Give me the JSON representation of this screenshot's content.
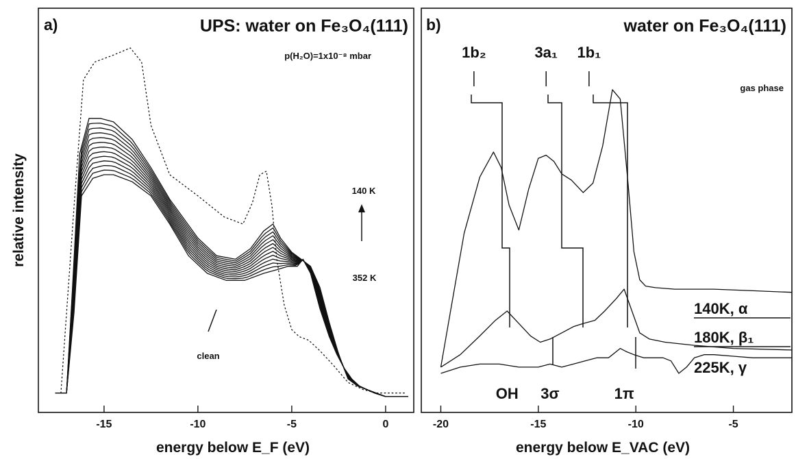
{
  "chart_data": [
    {
      "panel": "a)",
      "type": "line",
      "title": "UPS: water on Fe₃O₄(111)",
      "pressure_label": "p(H₂O)=1x10⁻⁸ mbar",
      "xlabel": "energy below E_F (eV)",
      "ylabel": "relative intensity",
      "xlim": [
        -18.5,
        1.5
      ],
      "xticks": [
        -15,
        -10,
        -5,
        0
      ],
      "xtick_labels": [
        "-15",
        "-10",
        "-5",
        "0"
      ],
      "legend": {
        "top": "140 K",
        "bottom": "352 K",
        "direction": "arrow up"
      },
      "annotations": [
        "clean"
      ],
      "series": [
        {
          "style": "dotted",
          "x": [
            -17.3,
            -16.6,
            -16.1,
            -15.5,
            -14.5,
            -13.6,
            -13.0,
            -12.5,
            -11.5,
            -10.0,
            -8.6,
            -7.6,
            -7.1,
            -6.7,
            -6.35,
            -6.05,
            -5.8,
            -5.4,
            -5.0,
            -4.6,
            -4.1,
            -3.5,
            -2.8,
            -2.0,
            -1.2,
            -0.5,
            0.2,
            1.0
          ],
          "y": [
            0.02,
            0.55,
            0.91,
            0.96,
            0.98,
            1.0,
            0.96,
            0.78,
            0.64,
            0.58,
            0.52,
            0.5,
            0.56,
            0.64,
            0.65,
            0.55,
            0.4,
            0.27,
            0.2,
            0.18,
            0.17,
            0.14,
            0.1,
            0.05,
            0.03,
            0.02,
            0.02,
            0.02
          ]
        },
        {
          "style": "solid",
          "x": [
            -17.6,
            -17.0,
            -16.7,
            -16.3,
            -15.8,
            -15.2,
            -14.5,
            -13.5,
            -12.5,
            -11.5,
            -10.0,
            -9.0,
            -8.0,
            -7.2,
            -6.5,
            -6.0,
            -5.6,
            -5.0,
            -4.5,
            -4.0,
            -3.5,
            -3.0,
            -2.5,
            -2.0,
            -1.5,
            -1.0,
            -0.5,
            0.0,
            1.2
          ],
          "y": [
            0.02,
            0.02,
            0.3,
            0.7,
            0.8,
            0.8,
            0.79,
            0.74,
            0.66,
            0.57,
            0.46,
            0.41,
            0.4,
            0.43,
            0.48,
            0.5,
            0.46,
            0.42,
            0.4,
            0.38,
            0.32,
            0.22,
            0.13,
            0.06,
            0.04,
            0.03,
            0.02,
            0.01,
            0.01
          ]
        },
        {
          "style": "thick",
          "x": [
            -17.6,
            -17.0,
            -16.6,
            -16.2,
            -15.6,
            -15.0,
            -14.5,
            -13.5,
            -12.5,
            -11.5,
            -10.5,
            -9.5,
            -8.5,
            -7.5,
            -6.5,
            -5.8,
            -5.2,
            -4.7,
            -4.4,
            -4.0,
            -3.5,
            -3.0,
            -2.6,
            -2.2,
            -1.8,
            -1.4,
            -1.0,
            -0.6,
            0.0,
            1.2
          ],
          "y": [
            0.02,
            0.02,
            0.25,
            0.58,
            0.63,
            0.64,
            0.64,
            0.62,
            0.58,
            0.5,
            0.41,
            0.36,
            0.34,
            0.34,
            0.36,
            0.37,
            0.38,
            0.38,
            0.4,
            0.36,
            0.26,
            0.18,
            0.13,
            0.09,
            0.06,
            0.04,
            0.03,
            0.02,
            0.01,
            0.01
          ]
        }
      ]
    },
    {
      "panel": "b)",
      "type": "line",
      "title": "water on Fe₃O₄(111)",
      "xlabel": "energy below E_VAC (eV)",
      "xlim": [
        -21,
        -2
      ],
      "xticks": [
        -20,
        -15,
        -10,
        -5
      ],
      "xtick_labels": [
        "-20",
        "-15",
        "-10",
        "-5"
      ],
      "gas_phase_label": "gas phase",
      "orbitals_gas": [
        {
          "label": "1b₂",
          "x": -18.3
        },
        {
          "label": "3a₁",
          "x": -14.6
        },
        {
          "label": "1b₁",
          "x": -12.4
        }
      ],
      "orbitals_adsorbate": [
        {
          "label": "OH",
          "x": -16.6
        },
        {
          "label": "3σ",
          "x": -14.4
        },
        {
          "label": "1π",
          "x": -10.6
        }
      ],
      "series": [
        {
          "name": "140K, α",
          "x": [
            -20.0,
            -19.5,
            -18.8,
            -18.0,
            -17.3,
            -16.9,
            -16.5,
            -16.0,
            -15.5,
            -15.0,
            -14.6,
            -14.2,
            -13.8,
            -13.3,
            -12.7,
            -12.2,
            -11.7,
            -11.2,
            -10.8,
            -10.4,
            -10.1,
            -9.8,
            -9.5,
            -9.0,
            -8.0,
            -6.0,
            -4.0,
            -2.0
          ],
          "y": [
            0.02,
            0.2,
            0.45,
            0.63,
            0.71,
            0.66,
            0.54,
            0.46,
            0.59,
            0.69,
            0.7,
            0.68,
            0.64,
            0.62,
            0.58,
            0.61,
            0.73,
            0.91,
            0.88,
            0.61,
            0.39,
            0.3,
            0.28,
            0.275,
            0.27,
            0.27,
            0.265,
            0.26
          ]
        },
        {
          "name": "180K, β₁",
          "x": [
            -20.0,
            -19.0,
            -18.0,
            -17.2,
            -16.6,
            -16.0,
            -15.4,
            -14.9,
            -14.4,
            -13.8,
            -13.2,
            -12.7,
            -12.1,
            -11.6,
            -11.0,
            -10.6,
            -10.2,
            -9.8,
            -9.3,
            -8.5,
            -7.0,
            -5.0,
            -2.0
          ],
          "y": [
            0.02,
            0.06,
            0.12,
            0.17,
            0.2,
            0.16,
            0.12,
            0.1,
            0.11,
            0.13,
            0.15,
            0.16,
            0.17,
            0.2,
            0.24,
            0.27,
            0.2,
            0.13,
            0.11,
            0.1,
            0.09,
            0.08,
            0.075
          ]
        },
        {
          "name": "225K, γ",
          "x": [
            -20.0,
            -19.0,
            -18.0,
            -17.0,
            -16.0,
            -15.0,
            -14.4,
            -13.8,
            -13.2,
            -12.6,
            -12.0,
            -11.4,
            -10.8,
            -10.5,
            -10.1,
            -9.6,
            -9.1,
            -8.6,
            -8.2,
            -7.8,
            -7.4,
            -7.0,
            -6.5,
            -6.0,
            -5.0,
            -4.0,
            -3.0,
            -2.0
          ],
          "y": [
            0.0,
            0.02,
            0.03,
            0.03,
            0.02,
            0.02,
            0.03,
            0.02,
            0.03,
            0.04,
            0.05,
            0.05,
            0.08,
            0.07,
            0.06,
            0.05,
            0.05,
            0.05,
            0.04,
            0.0,
            0.02,
            0.05,
            0.06,
            0.06,
            0.055,
            0.05,
            0.05,
            0.05
          ]
        }
      ]
    }
  ]
}
